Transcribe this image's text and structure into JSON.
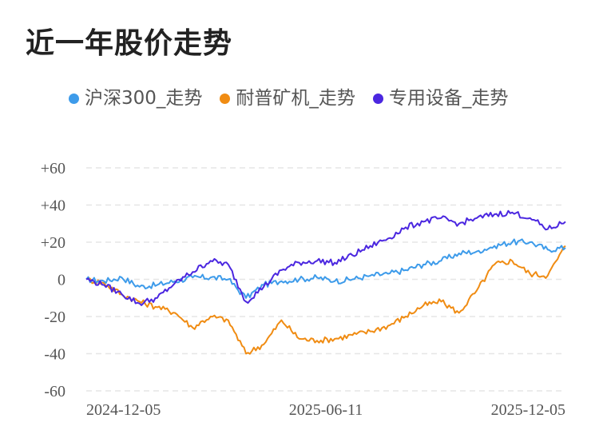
{
  "title": "近一年股价走势",
  "chart_data": {
    "type": "line",
    "title": "近一年股价走势",
    "xlabel": "",
    "ylabel": "",
    "ylim": [
      -60,
      60
    ],
    "yticks": [
      60,
      40,
      20,
      0,
      -20,
      -40,
      -60
    ],
    "ytick_labels": [
      "+60",
      "+40",
      "+20",
      "0",
      "-20",
      "-40",
      "-60"
    ],
    "xtick_labels": [
      "2024-12-05",
      "2025-06-11",
      "2025-12-05"
    ],
    "grid": true,
    "legend_position": "top",
    "x": [
      "2024-12-05",
      "2024-12-19",
      "2025-01-03",
      "2025-01-17",
      "2025-02-07",
      "2025-02-21",
      "2025-03-07",
      "2025-03-21",
      "2025-04-03",
      "2025-04-08",
      "2025-04-18",
      "2025-05-06",
      "2025-05-20",
      "2025-06-03",
      "2025-06-11",
      "2025-06-25",
      "2025-07-09",
      "2025-07-23",
      "2025-08-06",
      "2025-08-20",
      "2025-09-03",
      "2025-09-17",
      "2025-10-01",
      "2025-10-15",
      "2025-10-29",
      "2025-11-12",
      "2025-11-26",
      "2025-12-05"
    ],
    "series": [
      {
        "name": "沪深300_走势",
        "color": "#3d9bea",
        "values": [
          0,
          -1,
          1,
          -4,
          -3,
          -1,
          1,
          1,
          0,
          -10,
          -3,
          -1,
          0,
          1,
          -1,
          0,
          2,
          3,
          5,
          8,
          10,
          14,
          15,
          18,
          20,
          20,
          16,
          17
        ]
      },
      {
        "name": "耐普矿机_走势",
        "color": "#f08c13",
        "values": [
          0,
          -2,
          -8,
          -12,
          -15,
          -18,
          -26,
          -20,
          -22,
          -40,
          -35,
          -22,
          -32,
          -33,
          -32,
          -30,
          -28,
          -25,
          -20,
          -14,
          -12,
          -18,
          -6,
          8,
          10,
          3,
          2,
          18
        ]
      },
      {
        "name": "专用设备_走势",
        "color": "#4b27e0",
        "values": [
          0,
          -3,
          -8,
          -13,
          -10,
          -2,
          4,
          10,
          8,
          -12,
          -4,
          5,
          9,
          10,
          9,
          13,
          18,
          22,
          28,
          31,
          33,
          30,
          33,
          35,
          36,
          33,
          27,
          31
        ]
      }
    ]
  }
}
